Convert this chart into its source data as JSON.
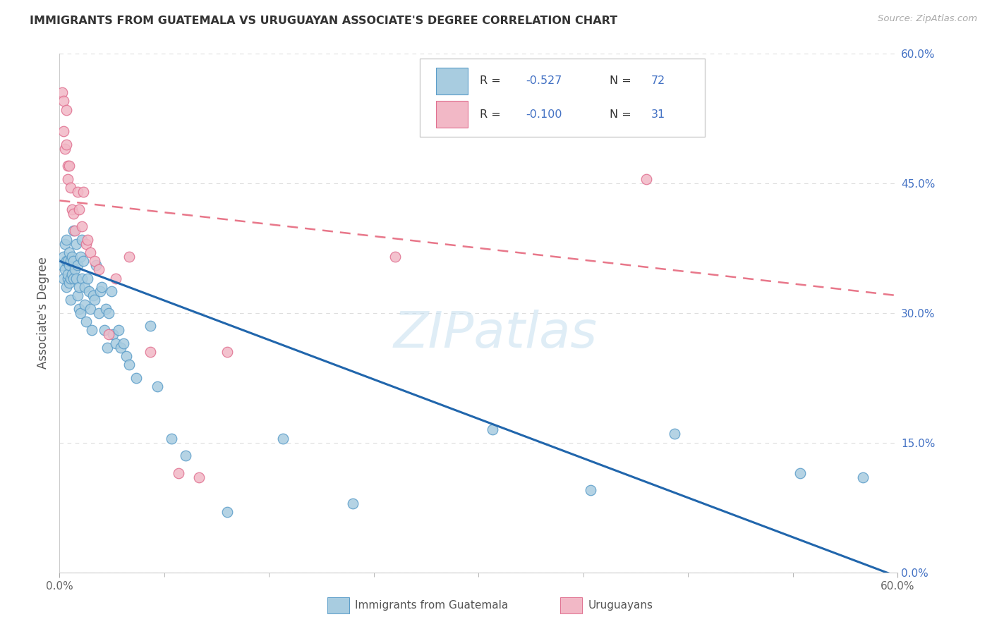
{
  "title": "IMMIGRANTS FROM GUATEMALA VS URUGUAYAN ASSOCIATE'S DEGREE CORRELATION CHART",
  "source_text": "Source: ZipAtlas.com",
  "ylabel": "Associate's Degree",
  "xlim": [
    0.0,
    0.6
  ],
  "ylim": [
    0.0,
    0.6
  ],
  "y_ticks": [
    0.0,
    0.15,
    0.3,
    0.45,
    0.6
  ],
  "y_tick_labels": [
    "0.0%",
    "15.0%",
    "30.0%",
    "45.0%",
    "60.0%"
  ],
  "legend_r1": "-0.527",
  "legend_n1": "72",
  "legend_r2": "-0.100",
  "legend_n2": "31",
  "blue_fill": "#a8cce0",
  "blue_edge": "#5b9dc9",
  "pink_fill": "#f2b8c6",
  "pink_edge": "#e07090",
  "blue_line": "#2166ac",
  "pink_line": "#e8778a",
  "text_blue": "#4472c4",
  "watermark": "ZIPatlas",
  "blue_x": [
    0.002,
    0.003,
    0.003,
    0.004,
    0.004,
    0.005,
    0.005,
    0.005,
    0.006,
    0.006,
    0.006,
    0.007,
    0.007,
    0.007,
    0.008,
    0.008,
    0.008,
    0.009,
    0.009,
    0.01,
    0.01,
    0.01,
    0.011,
    0.012,
    0.012,
    0.013,
    0.013,
    0.014,
    0.014,
    0.015,
    0.015,
    0.016,
    0.016,
    0.017,
    0.018,
    0.018,
    0.019,
    0.02,
    0.021,
    0.022,
    0.023,
    0.024,
    0.025,
    0.026,
    0.028,
    0.029,
    0.03,
    0.032,
    0.033,
    0.034,
    0.035,
    0.037,
    0.038,
    0.04,
    0.042,
    0.044,
    0.046,
    0.048,
    0.05,
    0.055,
    0.065,
    0.07,
    0.08,
    0.09,
    0.12,
    0.16,
    0.21,
    0.31,
    0.38,
    0.44,
    0.53,
    0.575
  ],
  "blue_y": [
    0.355,
    0.365,
    0.34,
    0.35,
    0.38,
    0.33,
    0.36,
    0.385,
    0.34,
    0.36,
    0.345,
    0.355,
    0.335,
    0.37,
    0.36,
    0.34,
    0.315,
    0.345,
    0.365,
    0.395,
    0.34,
    0.36,
    0.35,
    0.34,
    0.38,
    0.355,
    0.32,
    0.33,
    0.305,
    0.3,
    0.365,
    0.34,
    0.385,
    0.36,
    0.33,
    0.31,
    0.29,
    0.34,
    0.325,
    0.305,
    0.28,
    0.32,
    0.315,
    0.355,
    0.3,
    0.325,
    0.33,
    0.28,
    0.305,
    0.26,
    0.3,
    0.325,
    0.275,
    0.265,
    0.28,
    0.26,
    0.265,
    0.25,
    0.24,
    0.225,
    0.285,
    0.215,
    0.155,
    0.135,
    0.07,
    0.155,
    0.08,
    0.165,
    0.095,
    0.16,
    0.115,
    0.11
  ],
  "pink_x": [
    0.002,
    0.003,
    0.003,
    0.004,
    0.005,
    0.005,
    0.006,
    0.006,
    0.007,
    0.008,
    0.009,
    0.01,
    0.011,
    0.013,
    0.014,
    0.016,
    0.017,
    0.019,
    0.02,
    0.022,
    0.025,
    0.028,
    0.035,
    0.04,
    0.05,
    0.065,
    0.085,
    0.1,
    0.12,
    0.24,
    0.42
  ],
  "pink_y": [
    0.555,
    0.545,
    0.51,
    0.49,
    0.535,
    0.495,
    0.47,
    0.455,
    0.47,
    0.445,
    0.42,
    0.415,
    0.395,
    0.44,
    0.42,
    0.4,
    0.44,
    0.38,
    0.385,
    0.37,
    0.36,
    0.35,
    0.275,
    0.34,
    0.365,
    0.255,
    0.115,
    0.11,
    0.255,
    0.365,
    0.455
  ],
  "blue_trend_x": [
    0.0,
    0.6
  ],
  "blue_trend_y": [
    0.36,
    -0.005
  ],
  "pink_trend_x": [
    0.0,
    0.6
  ],
  "pink_trend_y": [
    0.43,
    0.32
  ],
  "background_color": "#ffffff",
  "grid_color": "#dddddd"
}
